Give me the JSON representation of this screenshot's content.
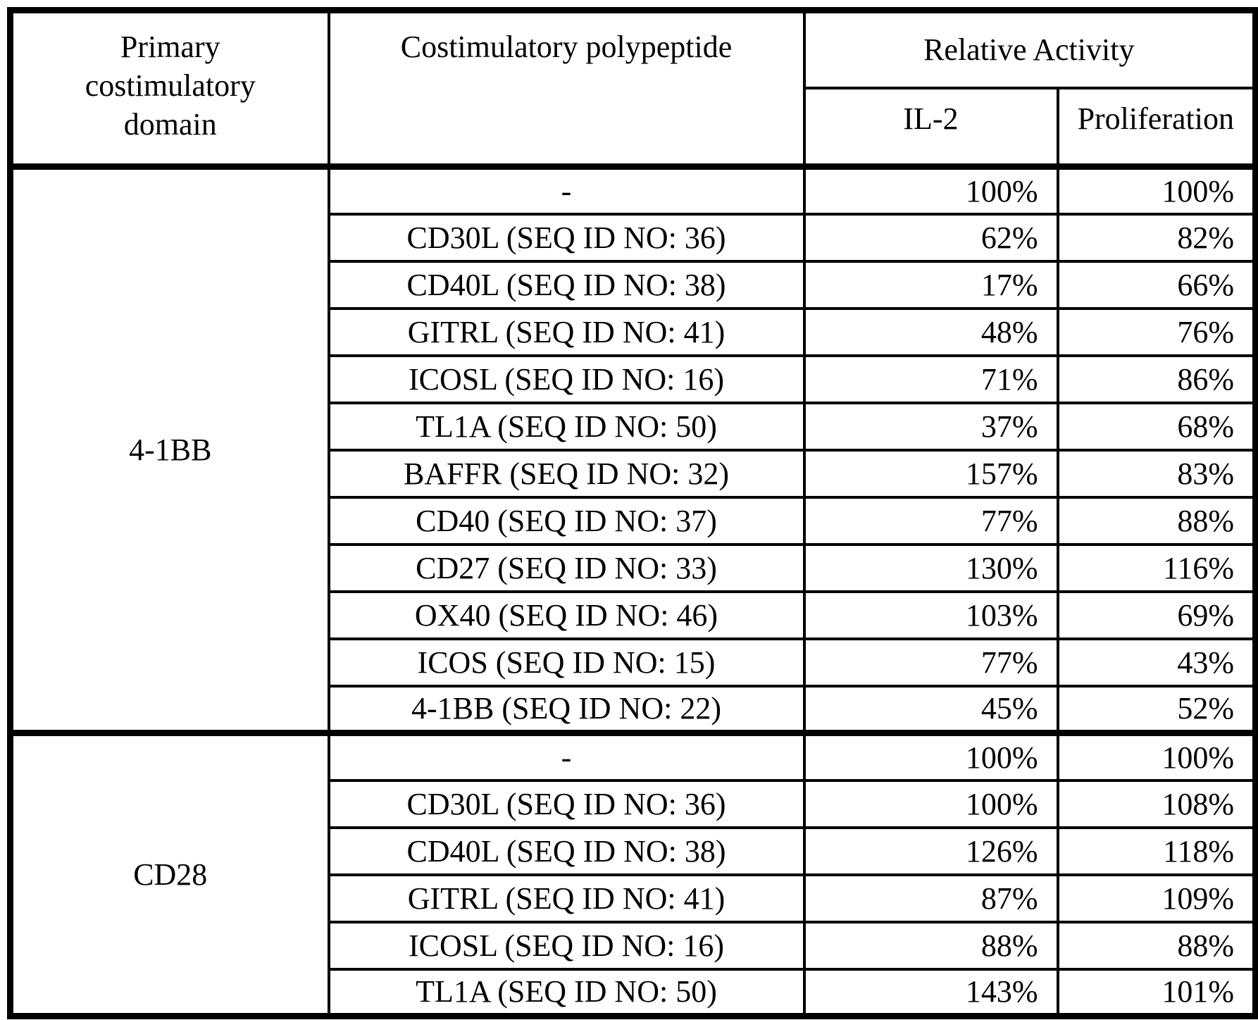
{
  "figure": {
    "background_color": "#ffffff",
    "line_color": "#000000"
  },
  "table": {
    "headers": {
      "primary_domain": "Primary costimulatory domain",
      "polypeptide": "Costimulatory polypeptide",
      "relative_activity": "Relative Activity",
      "il2": "IL-2",
      "proliferation": "Proliferation"
    },
    "groups": [
      {
        "domain": "4-1BB",
        "rows": [
          {
            "polypeptide": "-",
            "il2": "100%",
            "proliferation": "100%"
          },
          {
            "polypeptide": "CD30L (SEQ ID NO: 36)",
            "il2": "62%",
            "proliferation": "82%"
          },
          {
            "polypeptide": "CD40L (SEQ ID NO: 38)",
            "il2": "17%",
            "proliferation": "66%"
          },
          {
            "polypeptide": "GITRL (SEQ ID NO: 41)",
            "il2": "48%",
            "proliferation": "76%"
          },
          {
            "polypeptide": "ICOSL (SEQ ID NO: 16)",
            "il2": "71%",
            "proliferation": "86%"
          },
          {
            "polypeptide": "TL1A (SEQ ID NO: 50)",
            "il2": "37%",
            "proliferation": "68%"
          },
          {
            "polypeptide": "BAFFR (SEQ ID NO: 32)",
            "il2": "157%",
            "proliferation": "83%"
          },
          {
            "polypeptide": "CD40 (SEQ ID NO: 37)",
            "il2": "77%",
            "proliferation": "88%"
          },
          {
            "polypeptide": "CD27 (SEQ ID NO: 33)",
            "il2": "130%",
            "proliferation": "116%"
          },
          {
            "polypeptide": "OX40 (SEQ ID NO: 46)",
            "il2": "103%",
            "proliferation": "69%"
          },
          {
            "polypeptide": "ICOS (SEQ ID NO: 15)",
            "il2": "77%",
            "proliferation": "43%"
          },
          {
            "polypeptide": "4-1BB (SEQ ID NO: 22)",
            "il2": "45%",
            "proliferation": "52%"
          }
        ]
      },
      {
        "domain": "CD28",
        "rows": [
          {
            "polypeptide": "-",
            "il2": "100%",
            "proliferation": "100%"
          },
          {
            "polypeptide": "CD30L (SEQ ID NO: 36)",
            "il2": "100%",
            "proliferation": "108%"
          },
          {
            "polypeptide": "CD40L (SEQ ID NO: 38)",
            "il2": "126%",
            "proliferation": "118%"
          },
          {
            "polypeptide": "GITRL (SEQ ID NO: 41)",
            "il2": "87%",
            "proliferation": "109%"
          },
          {
            "polypeptide": "ICOSL (SEQ ID NO: 16)",
            "il2": "88%",
            "proliferation": "88%"
          },
          {
            "polypeptide": "TL1A (SEQ ID NO: 50)",
            "il2": "143%",
            "proliferation": "101%"
          }
        ]
      }
    ]
  }
}
